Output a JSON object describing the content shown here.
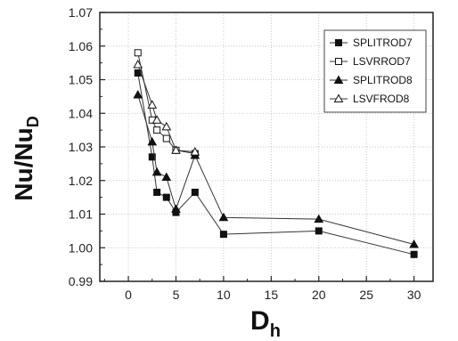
{
  "chart_data": {
    "type": "line",
    "xlabel": "D",
    "xlabel_sub": "h",
    "ylabel": "Nu/Nu",
    "ylabel_sub": "D",
    "xlim": [
      -3,
      32
    ],
    "ylim": [
      0.99,
      1.07
    ],
    "xticks": [
      0,
      5,
      10,
      15,
      20,
      25,
      30
    ],
    "yticks": [
      "0.99",
      "1.00",
      "1.01",
      "1.02",
      "1.03",
      "1.04",
      "1.05",
      "1.06",
      "1.07"
    ],
    "grid": true,
    "legend_position": "top-right",
    "series": [
      {
        "name": "SPLITROD7",
        "marker": "square-filled",
        "x": [
          1,
          2.5,
          3,
          4,
          5,
          7,
          10,
          20,
          30
        ],
        "y": [
          1.052,
          1.027,
          1.0165,
          1.015,
          1.0105,
          1.0165,
          1.004,
          1.005,
          0.998
        ]
      },
      {
        "name": "LSVRROD7",
        "marker": "square-open",
        "x": [
          1,
          2.5,
          3,
          4,
          5,
          7
        ],
        "y": [
          1.058,
          1.038,
          1.035,
          1.0325,
          1.029,
          1.028
        ]
      },
      {
        "name": "SPLITROD8",
        "marker": "triangle-filled",
        "x": [
          1,
          2.5,
          3,
          4,
          5,
          7,
          10,
          20,
          30
        ],
        "y": [
          1.0455,
          1.0315,
          1.0225,
          1.021,
          1.0115,
          1.0275,
          1.009,
          1.0085,
          1.001
        ]
      },
      {
        "name": "LSVFROD8",
        "marker": "triangle-open",
        "x": [
          1,
          2.5,
          3,
          4,
          5,
          7
        ],
        "y": [
          1.0545,
          1.0425,
          1.038,
          1.036,
          1.029,
          1.0285
        ]
      }
    ]
  }
}
